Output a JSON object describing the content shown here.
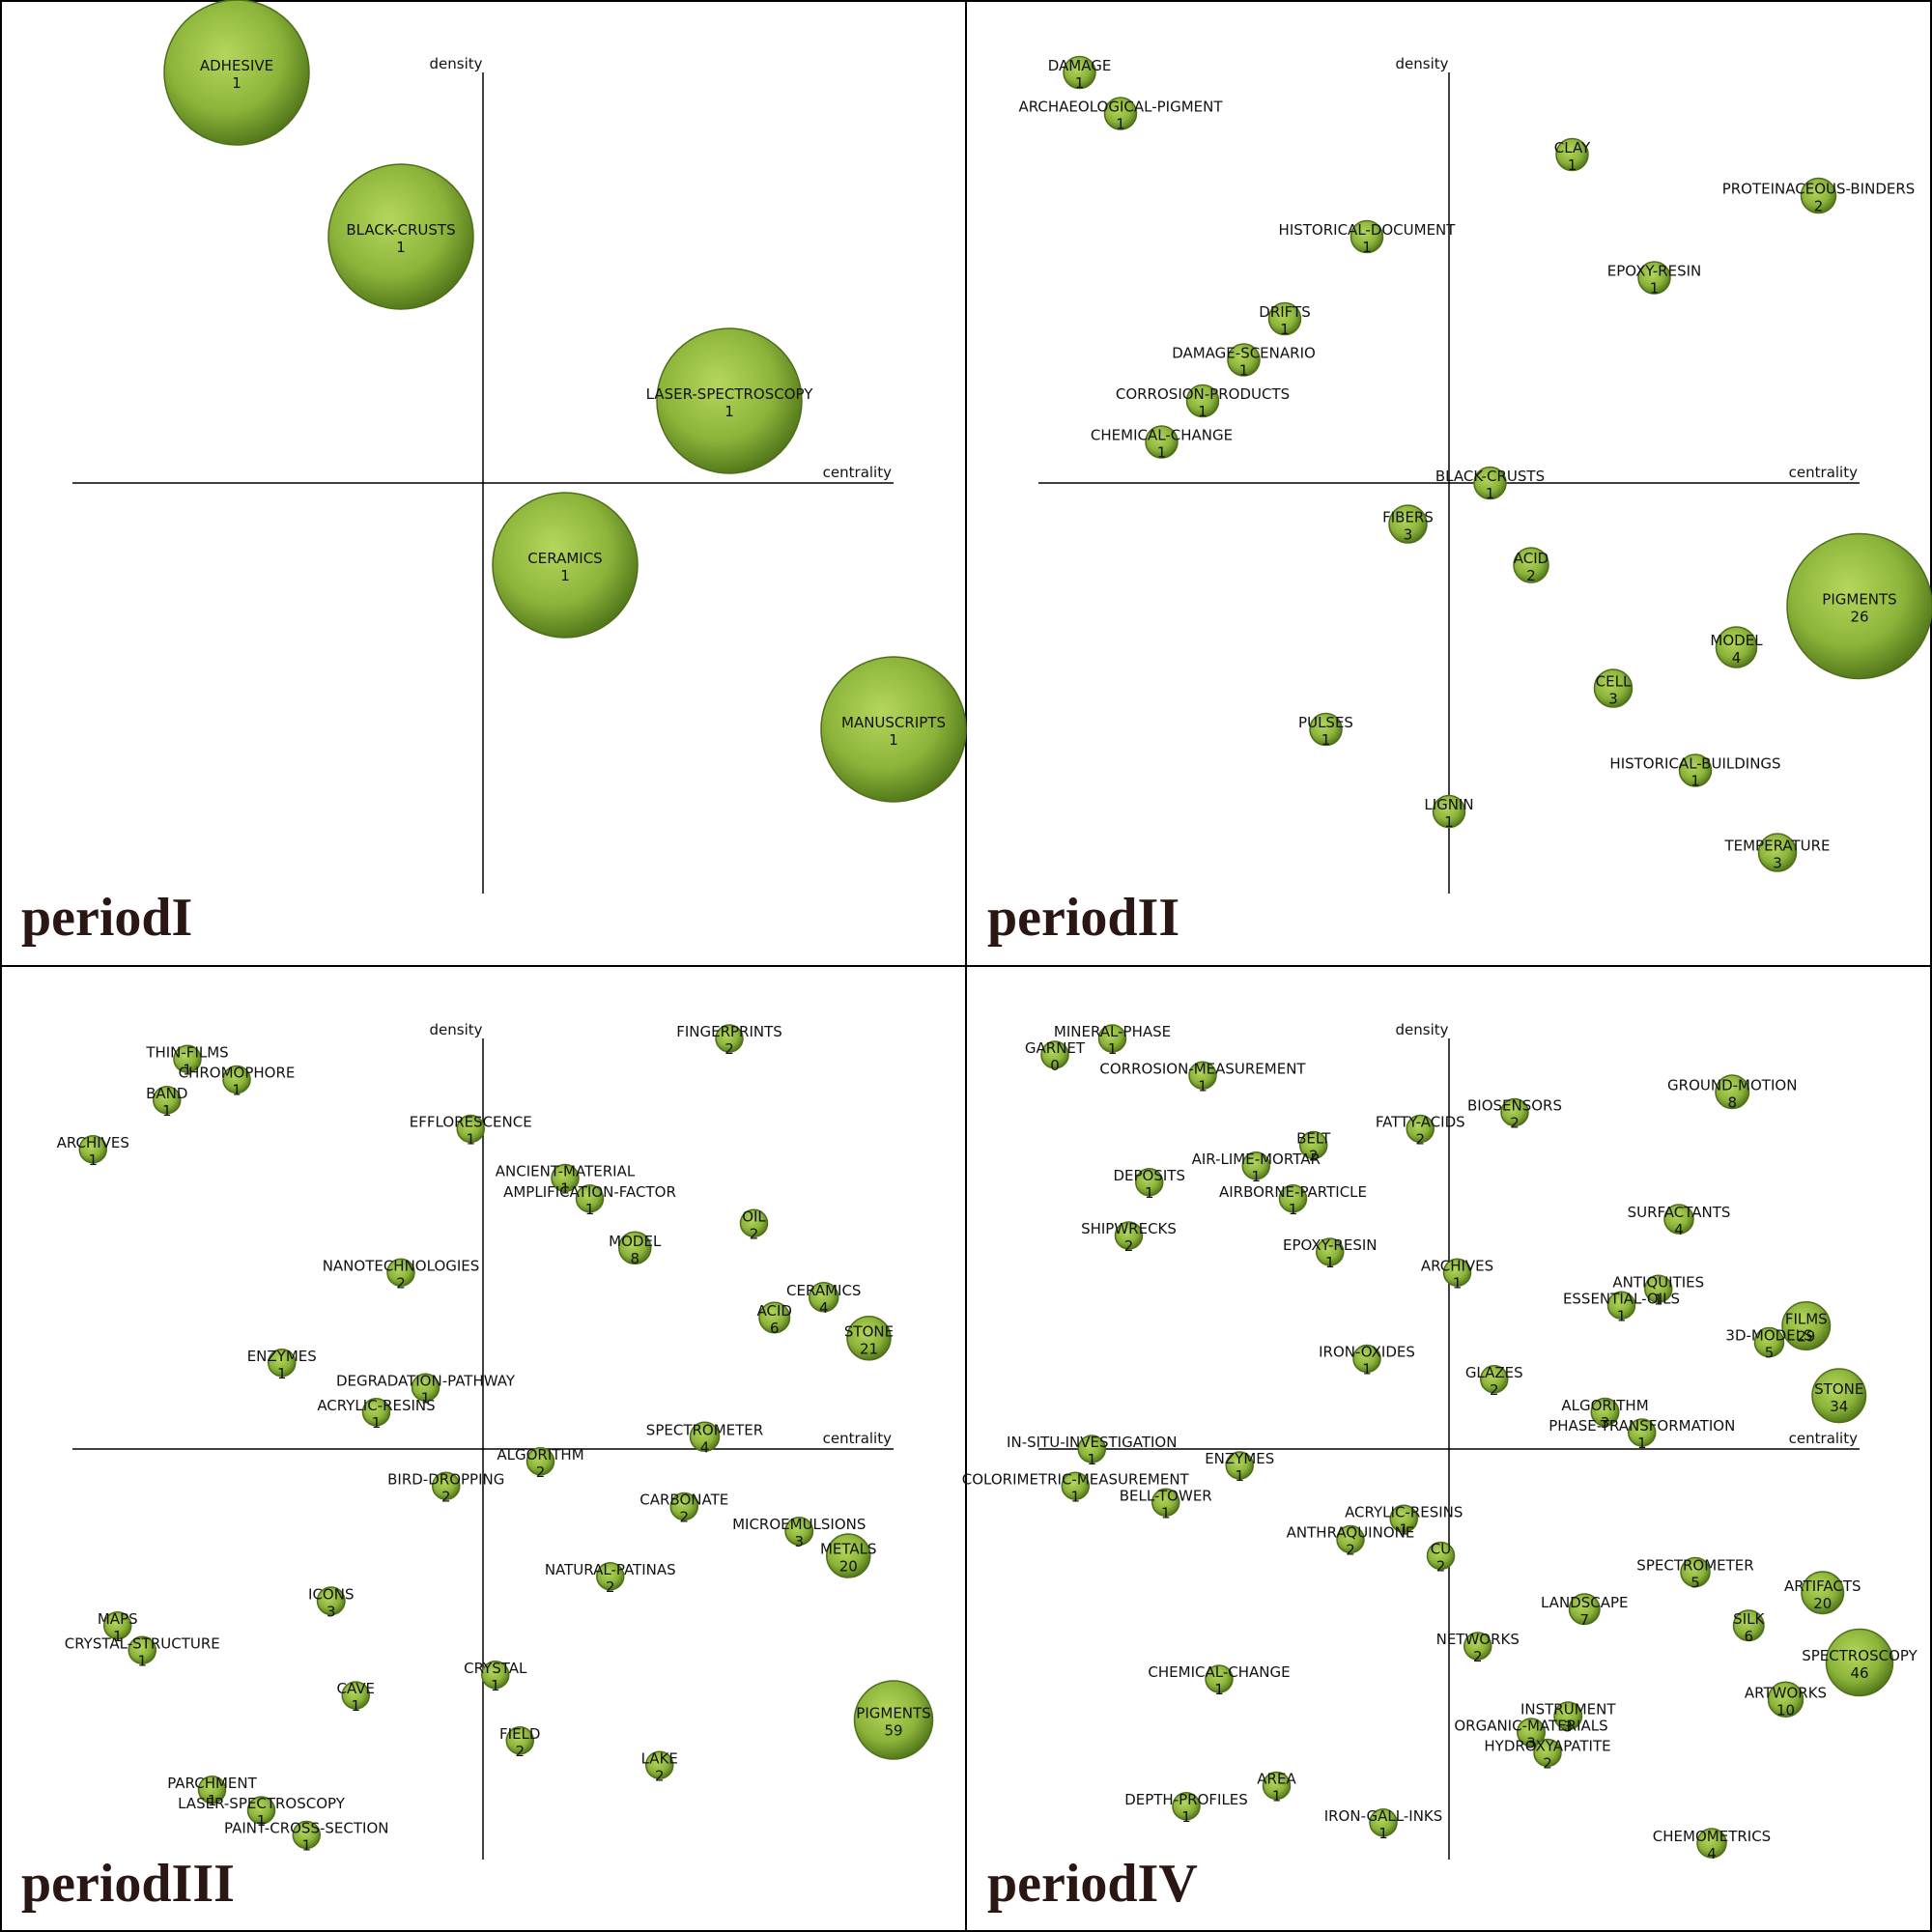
{
  "chart_data": [
    {
      "type": "scatter",
      "title": "periodI",
      "xlabel": "centrality",
      "ylabel": "density",
      "points": [
        {
          "label": "ADHESIVE",
          "count": "1",
          "x": -0.6,
          "y": 1.0,
          "size": 1.0
        },
        {
          "label": "BLACK-CRUSTS",
          "count": "1",
          "x": -0.2,
          "y": 0.6,
          "size": 1.0
        },
        {
          "label": "LASER-SPECTROSCOPY",
          "count": "1",
          "x": 0.6,
          "y": 0.2,
          "size": 1.0
        },
        {
          "label": "CERAMICS",
          "count": "1",
          "x": 0.2,
          "y": -0.2,
          "size": 1.0
        },
        {
          "label": "MANUSCRIPTS",
          "count": "1",
          "x": 1.0,
          "y": -0.6,
          "size": 1.0
        }
      ]
    },
    {
      "type": "scatter",
      "title": "periodII",
      "xlabel": "centrality",
      "ylabel": "density",
      "points": [
        {
          "label": "DAMAGE",
          "count": "1",
          "x": -0.9,
          "y": 1.0,
          "size": 0.22
        },
        {
          "label": "ARCHAEOLOGICAL-PIGMENT",
          "count": "1",
          "x": -0.8,
          "y": 0.9,
          "size": 0.22
        },
        {
          "label": "CLAY",
          "count": "1",
          "x": 0.3,
          "y": 0.8,
          "size": 0.22
        },
        {
          "label": "PROTEINACEOUS-BINDERS",
          "count": "2",
          "x": 0.9,
          "y": 0.7,
          "size": 0.24
        },
        {
          "label": "HISTORICAL-DOCUMENT",
          "count": "1",
          "x": -0.2,
          "y": 0.6,
          "size": 0.22
        },
        {
          "label": "EPOXY-RESIN",
          "count": "1",
          "x": 0.5,
          "y": 0.5,
          "size": 0.22
        },
        {
          "label": "DRIFTS",
          "count": "1",
          "x": -0.4,
          "y": 0.4,
          "size": 0.22
        },
        {
          "label": "DAMAGE-SCENARIO",
          "count": "1",
          "x": -0.5,
          "y": 0.3,
          "size": 0.22
        },
        {
          "label": "CORROSION-PRODUCTS",
          "count": "1",
          "x": -0.6,
          "y": 0.2,
          "size": 0.22
        },
        {
          "label": "CHEMICAL-CHANGE",
          "count": "1",
          "x": -0.7,
          "y": 0.1,
          "size": 0.22
        },
        {
          "label": "BLACK-CRUSTS",
          "count": "1",
          "x": 0.1,
          "y": 0.0,
          "size": 0.22
        },
        {
          "label": "FIBERS",
          "count": "3",
          "x": -0.1,
          "y": -0.1,
          "size": 0.26
        },
        {
          "label": "ACID",
          "count": "2",
          "x": 0.2,
          "y": -0.2,
          "size": 0.24
        },
        {
          "label": "PIGMENTS",
          "count": "26",
          "x": 1.0,
          "y": -0.3,
          "size": 1.0
        },
        {
          "label": "MODEL",
          "count": "4",
          "x": 0.7,
          "y": -0.4,
          "size": 0.28
        },
        {
          "label": "CELL",
          "count": "3",
          "x": 0.4,
          "y": -0.5,
          "size": 0.26
        },
        {
          "label": "PULSES",
          "count": "1",
          "x": -0.3,
          "y": -0.6,
          "size": 0.22
        },
        {
          "label": "HISTORICAL-BUILDINGS",
          "count": "1",
          "x": 0.6,
          "y": -0.7,
          "size": 0.22
        },
        {
          "label": "LIGNIN",
          "count": "1",
          "x": 0.0,
          "y": -0.8,
          "size": 0.22
        },
        {
          "label": "TEMPERATURE",
          "count": "3",
          "x": 0.8,
          "y": -0.9,
          "size": 0.26
        }
      ]
    },
    {
      "type": "scatter",
      "title": "periodIII",
      "xlabel": "centrality",
      "ylabel": "density",
      "points": [
        {
          "label": "FINGERPRINTS",
          "count": "2",
          "x": 0.6,
          "y": 1.0,
          "size": 0.18
        },
        {
          "label": "THIN-FILMS",
          "count": "1",
          "x": -0.72,
          "y": 0.95,
          "size": 0.18
        },
        {
          "label": "CHROMOPHORE",
          "count": "1",
          "x": -0.6,
          "y": 0.9,
          "size": 0.18
        },
        {
          "label": "BAND",
          "count": "1",
          "x": -0.77,
          "y": 0.85,
          "size": 0.18
        },
        {
          "label": "ARCHIVES",
          "count": "1",
          "x": -0.95,
          "y": 0.73,
          "size": 0.18
        },
        {
          "label": "EFFLORESCENCE",
          "count": "1",
          "x": -0.03,
          "y": 0.78,
          "size": 0.18
        },
        {
          "label": "ANCIENT-MATERIAL",
          "count": "1",
          "x": 0.2,
          "y": 0.66,
          "size": 0.18
        },
        {
          "label": "AMPLIFICATION-FACTOR",
          "count": "1",
          "x": 0.26,
          "y": 0.61,
          "size": 0.18
        },
        {
          "label": "OIL",
          "count": "2",
          "x": 0.66,
          "y": 0.55,
          "size": 0.18
        },
        {
          "label": "MODEL",
          "count": "8",
          "x": 0.37,
          "y": 0.49,
          "size": 0.22
        },
        {
          "label": "NANOTECHNOLOGIES",
          "count": "2",
          "x": -0.2,
          "y": 0.43,
          "size": 0.18
        },
        {
          "label": "CERAMICS",
          "count": "4",
          "x": 0.83,
          "y": 0.37,
          "size": 0.2
        },
        {
          "label": "ACID",
          "count": "6",
          "x": 0.71,
          "y": 0.32,
          "size": 0.21
        },
        {
          "label": "STONE",
          "count": "21",
          "x": 0.94,
          "y": 0.27,
          "size": 0.3
        },
        {
          "label": "ENZYMES",
          "count": "1",
          "x": -0.49,
          "y": 0.21,
          "size": 0.18
        },
        {
          "label": "DEGRADATION-PATHWAY",
          "count": "1",
          "x": -0.14,
          "y": 0.15,
          "size": 0.18
        },
        {
          "label": "ACRYLIC-RESINS",
          "count": "1",
          "x": -0.26,
          "y": 0.09,
          "size": 0.18
        },
        {
          "label": "SPECTROMETER",
          "count": "4",
          "x": 0.54,
          "y": 0.03,
          "size": 0.2
        },
        {
          "label": "ALGORITHM",
          "count": "2",
          "x": 0.14,
          "y": -0.03,
          "size": 0.18
        },
        {
          "label": "BIRD-DROPPING",
          "count": "2",
          "x": -0.09,
          "y": -0.09,
          "size": 0.18
        },
        {
          "label": "CARBONATE",
          "count": "2",
          "x": 0.49,
          "y": -0.14,
          "size": 0.18
        },
        {
          "label": "MICROEMULSIONS",
          "count": "3",
          "x": 0.77,
          "y": -0.2,
          "size": 0.19
        },
        {
          "label": "METALS",
          "count": "20",
          "x": 0.89,
          "y": -0.26,
          "size": 0.3
        },
        {
          "label": "NATURAL-PATINAS",
          "count": "2",
          "x": 0.31,
          "y": -0.31,
          "size": 0.18
        },
        {
          "label": "ICONS",
          "count": "3",
          "x": -0.37,
          "y": -0.37,
          "size": 0.19
        },
        {
          "label": "MAPS",
          "count": "1",
          "x": -0.89,
          "y": -0.43,
          "size": 0.18
        },
        {
          "label": "CRYSTAL-STRUCTURE",
          "count": "1",
          "x": -0.83,
          "y": -0.49,
          "size": 0.18
        },
        {
          "label": "CRYSTAL",
          "count": "1",
          "x": 0.03,
          "y": -0.55,
          "size": 0.18
        },
        {
          "label": "CAVE",
          "count": "1",
          "x": -0.31,
          "y": -0.6,
          "size": 0.18
        },
        {
          "label": "PIGMENTS",
          "count": "59",
          "x": 1.0,
          "y": -0.66,
          "size": 0.54
        },
        {
          "label": "FIELD",
          "count": "2",
          "x": 0.09,
          "y": -0.71,
          "size": 0.18
        },
        {
          "label": "LAKE",
          "count": "2",
          "x": 0.43,
          "y": -0.77,
          "size": 0.18
        },
        {
          "label": "PARCHMENT",
          "count": "1",
          "x": -0.66,
          "y": -0.83,
          "size": 0.18
        },
        {
          "label": "LASER-SPECTROSCOPY",
          "count": "1",
          "x": -0.54,
          "y": -0.88,
          "size": 0.18
        },
        {
          "label": "PAINT-CROSS-SECTION",
          "count": "1",
          "x": -0.43,
          "y": -0.94,
          "size": 0.18
        }
      ]
    },
    {
      "type": "scatter",
      "title": "periodIV",
      "xlabel": "centrality",
      "ylabel": "density",
      "points": [
        {
          "label": "MINERAL-PHASE",
          "count": "1",
          "x": -0.82,
          "y": 1.0,
          "size": 0.18
        },
        {
          "label": "GARNET",
          "count": "0",
          "x": -0.96,
          "y": 0.96,
          "size": 0.18
        },
        {
          "label": "CORROSION-MEASUREMENT",
          "count": "1",
          "x": -0.6,
          "y": 0.91,
          "size": 0.18
        },
        {
          "label": "GROUND-MOTION",
          "count": "8",
          "x": 0.69,
          "y": 0.87,
          "size": 0.23
        },
        {
          "label": "BIOSENSORS",
          "count": "2",
          "x": 0.16,
          "y": 0.82,
          "size": 0.18
        },
        {
          "label": "FATTY-ACIDS",
          "count": "2",
          "x": -0.07,
          "y": 0.78,
          "size": 0.18
        },
        {
          "label": "BELT",
          "count": "2",
          "x": -0.33,
          "y": 0.74,
          "size": 0.18
        },
        {
          "label": "AIR-LIME-MORTAR",
          "count": "1",
          "x": -0.47,
          "y": 0.69,
          "size": 0.18
        },
        {
          "label": "DEPOSITS",
          "count": "1",
          "x": -0.73,
          "y": 0.65,
          "size": 0.18
        },
        {
          "label": "AIRBORNE-PARTICLE",
          "count": "1",
          "x": -0.38,
          "y": 0.61,
          "size": 0.18
        },
        {
          "label": "SURFACTANTS",
          "count": "4",
          "x": 0.56,
          "y": 0.56,
          "size": 0.2
        },
        {
          "label": "SHIPWRECKS",
          "count": "2",
          "x": -0.78,
          "y": 0.52,
          "size": 0.18
        },
        {
          "label": "EPOXY-RESIN",
          "count": "1",
          "x": -0.29,
          "y": 0.48,
          "size": 0.18
        },
        {
          "label": "ARCHIVES",
          "count": "1",
          "x": 0.02,
          "y": 0.43,
          "size": 0.18
        },
        {
          "label": "ANTIQUITIES",
          "count": "1",
          "x": 0.51,
          "y": 0.39,
          "size": 0.18
        },
        {
          "label": "ESSENTIAL-OILS",
          "count": "1",
          "x": 0.42,
          "y": 0.35,
          "size": 0.18
        },
        {
          "label": "FILMS",
          "count": "29",
          "x": 0.87,
          "y": 0.3,
          "size": 0.33
        },
        {
          "label": "3D-MODELS",
          "count": "5",
          "x": 0.78,
          "y": 0.26,
          "size": 0.2
        },
        {
          "label": "IRON-OXIDES",
          "count": "1",
          "x": -0.2,
          "y": 0.22,
          "size": 0.18
        },
        {
          "label": "GLAZES",
          "count": "2",
          "x": 0.11,
          "y": 0.17,
          "size": 0.18
        },
        {
          "label": "STONE",
          "count": "34",
          "x": 0.95,
          "y": 0.13,
          "size": 0.37
        },
        {
          "label": "ALGORITHM",
          "count": "3",
          "x": 0.38,
          "y": 0.09,
          "size": 0.19
        },
        {
          "label": "PHASE-TRANSFORMATION",
          "count": "1",
          "x": 0.47,
          "y": 0.04,
          "size": 0.18
        },
        {
          "label": "IN-SITU-INVESTIGATION",
          "count": "1",
          "x": -0.87,
          "y": 0.0,
          "size": 0.18
        },
        {
          "label": "ENZYMES",
          "count": "1",
          "x": -0.51,
          "y": -0.04,
          "size": 0.18
        },
        {
          "label": "COLORIMETRIC-MEASUREMENT",
          "count": "1",
          "x": -0.91,
          "y": -0.09,
          "size": 0.18
        },
        {
          "label": "BELL-TOWER",
          "count": "1",
          "x": -0.69,
          "y": -0.13,
          "size": 0.18
        },
        {
          "label": "ACRYLIC-RESINS",
          "count": "1",
          "x": -0.11,
          "y": -0.17,
          "size": 0.18
        },
        {
          "label": "ANTHRAQUINONE",
          "count": "2",
          "x": -0.24,
          "y": -0.22,
          "size": 0.18
        },
        {
          "label": "CU",
          "count": "2",
          "x": -0.02,
          "y": -0.26,
          "size": 0.18
        },
        {
          "label": "SPECTROMETER",
          "count": "5",
          "x": 0.6,
          "y": -0.3,
          "size": 0.2
        },
        {
          "label": "ARTIFACTS",
          "count": "20",
          "x": 0.91,
          "y": -0.35,
          "size": 0.29
        },
        {
          "label": "LANDSCAPE",
          "count": "7",
          "x": 0.33,
          "y": -0.39,
          "size": 0.21
        },
        {
          "label": "SILK",
          "count": "6",
          "x": 0.73,
          "y": -0.43,
          "size": 0.21
        },
        {
          "label": "NETWORKS",
          "count": "2",
          "x": 0.07,
          "y": -0.48,
          "size": 0.18
        },
        {
          "label": "SPECTROSCOPY",
          "count": "46",
          "x": 1.0,
          "y": -0.52,
          "size": 0.46
        },
        {
          "label": "CHEMICAL-CHANGE",
          "count": "1",
          "x": -0.56,
          "y": -0.56,
          "size": 0.18
        },
        {
          "label": "ARTWORKS",
          "count": "10",
          "x": 0.82,
          "y": -0.61,
          "size": 0.24
        },
        {
          "label": "INSTRUMENT",
          "count": "3",
          "x": 0.29,
          "y": -0.65,
          "size": 0.19
        },
        {
          "label": "ORGANIC-MATERIALS",
          "count": "3",
          "x": 0.2,
          "y": -0.69,
          "size": 0.19
        },
        {
          "label": "HYDROXYAPATITE",
          "count": "2",
          "x": 0.24,
          "y": -0.74,
          "size": 0.18
        },
        {
          "label": "AREA",
          "count": "1",
          "x": -0.42,
          "y": -0.82,
          "size": 0.18
        },
        {
          "label": "DEPTH-PROFILES",
          "count": "1",
          "x": -0.64,
          "y": -0.87,
          "size": 0.18
        },
        {
          "label": "IRON-GALL-INKS",
          "count": "1",
          "x": -0.16,
          "y": -0.91,
          "size": 0.18
        },
        {
          "label": "CHEMOMETRICS",
          "count": "4",
          "x": 0.64,
          "y": -0.96,
          "size": 0.2
        }
      ]
    }
  ],
  "colors": {
    "bubble_light": "#b5d65c",
    "bubble_mid": "#8cb43a",
    "bubble_dark": "#4e7318",
    "outline": "#4e6e1a",
    "title": "#2a1612",
    "frame": "#000000"
  }
}
